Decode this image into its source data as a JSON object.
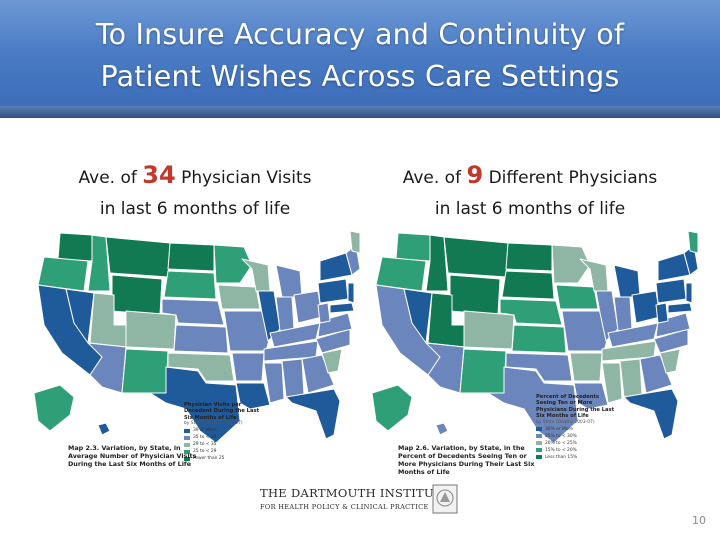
{
  "slide": {
    "title_line1": "To Insure Accuracy and Continuity of",
    "title_line2": "Patient Wishes Across Care Settings",
    "page_number": "10"
  },
  "left_panel": {
    "caption_prefix": "Ave. of",
    "caption_number": "34",
    "caption_suffix": "Physician Visits",
    "caption_line2": "in last 6 months of life",
    "map_caption": "Map 2.3. Variation, by State, in Average Number of Physician Visits During the Last Six Months of Life",
    "legend_title": "Physician Visits per Decedent During the Last Six Months of Life",
    "legend_subtitle": "by State (Deaths 2003-07)",
    "legend_items": [
      {
        "label": "39 or More",
        "color": "#1f5a9a"
      },
      {
        "label": "35 to < 39",
        "color": "#6b86bd"
      },
      {
        "label": "29 to < 35",
        "color": "#8fb6a4"
      },
      {
        "label": "25 to < 29",
        "color": "#2f9f78"
      },
      {
        "label": "Fewer than 25",
        "color": "#127a52"
      }
    ]
  },
  "right_panel": {
    "caption_prefix": "Ave. of",
    "caption_number": "9",
    "caption_suffix": "Different Physicians",
    "caption_line2": "in last 6 months of life",
    "map_caption": "Map 2.6. Variation, by State, in the Percent of Decedents Seeing Ten or More Physicians During Their Last Six Months of Life",
    "legend_title": "Percent of Decedents Seeing Ten or More Physicians During the Last Six Months of Life",
    "legend_subtitle": "by State (Deaths 2003-07)",
    "legend_items": [
      {
        "label": "30% or More",
        "color": "#1f5a9a"
      },
      {
        "label": "25% to < 30%",
        "color": "#6b86bd"
      },
      {
        "label": "20% to < 25%",
        "color": "#8fb6a4"
      },
      {
        "label": "15% to < 20%",
        "color": "#2f9f78"
      },
      {
        "label": "Less than 15%",
        "color": "#127a52"
      }
    ]
  },
  "logo": {
    "line1": "THE DARTMOUTH INSTITUTE",
    "line2": "FOR HEALTH POLICY & CLINICAL PRACTICE"
  },
  "colors": {
    "title_bar": "#4a7bc4",
    "highlight_number": "#c0392b",
    "dark_blue": "#1f5a9a",
    "mid_blue": "#6b86bd",
    "sage": "#8fb6a4",
    "green": "#2f9f78",
    "dark_green": "#127a52"
  }
}
